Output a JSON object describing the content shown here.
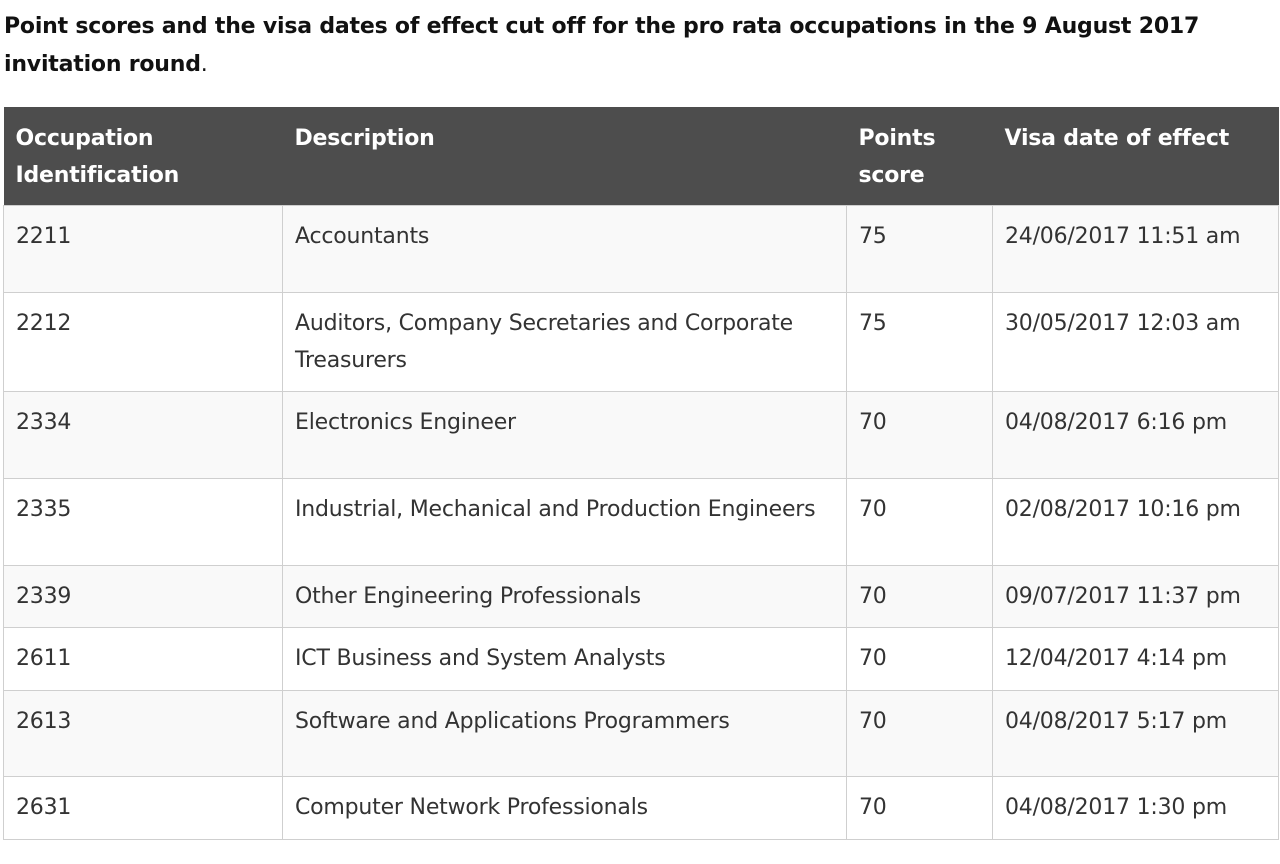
{
  "heading": {
    "text": "Point scores and the visa dates of effect cut off for the pro rata occupations in the 9 August 2017 invitation round",
    "period": "."
  },
  "table": {
    "columns": [
      "Occupation Identification",
      "Description",
      "Points score",
      "Visa date of effect"
    ],
    "rows": [
      {
        "id": "2211",
        "description": "Accountants",
        "points": "75",
        "date": "24/06/2017 11:51 am"
      },
      {
        "id": "2212",
        "description": "Auditors, Company Secretaries and Corporate Treasurers",
        "points": "75",
        "date": "30/05/2017 12:03 am"
      },
      {
        "id": "2334",
        "description": "Electronics Engineer",
        "points": "70",
        "date": "04/08/2017 6:16 pm"
      },
      {
        "id": "2335",
        "description": "Industrial, Mechanical and Production Engineers",
        "points": "70",
        "date": "02/08/2017 10:16 pm"
      },
      {
        "id": "2339",
        "description": "Other Engineering Professionals",
        "points": "70",
        "date": "09/07/2017 11:37 pm"
      },
      {
        "id": "2611",
        "description": "ICT Business and System Analysts",
        "points": "70",
        "date": "12/04/2017 4:14 pm"
      },
      {
        "id": "2613",
        "description": "Software and Applications Programmers",
        "points": "70",
        "date": "04/08/2017 5:17 pm"
      },
      {
        "id": "2631",
        "description": "Computer Network Professionals",
        "points": "70",
        "date": "04/08/2017 1:30 pm"
      }
    ]
  }
}
